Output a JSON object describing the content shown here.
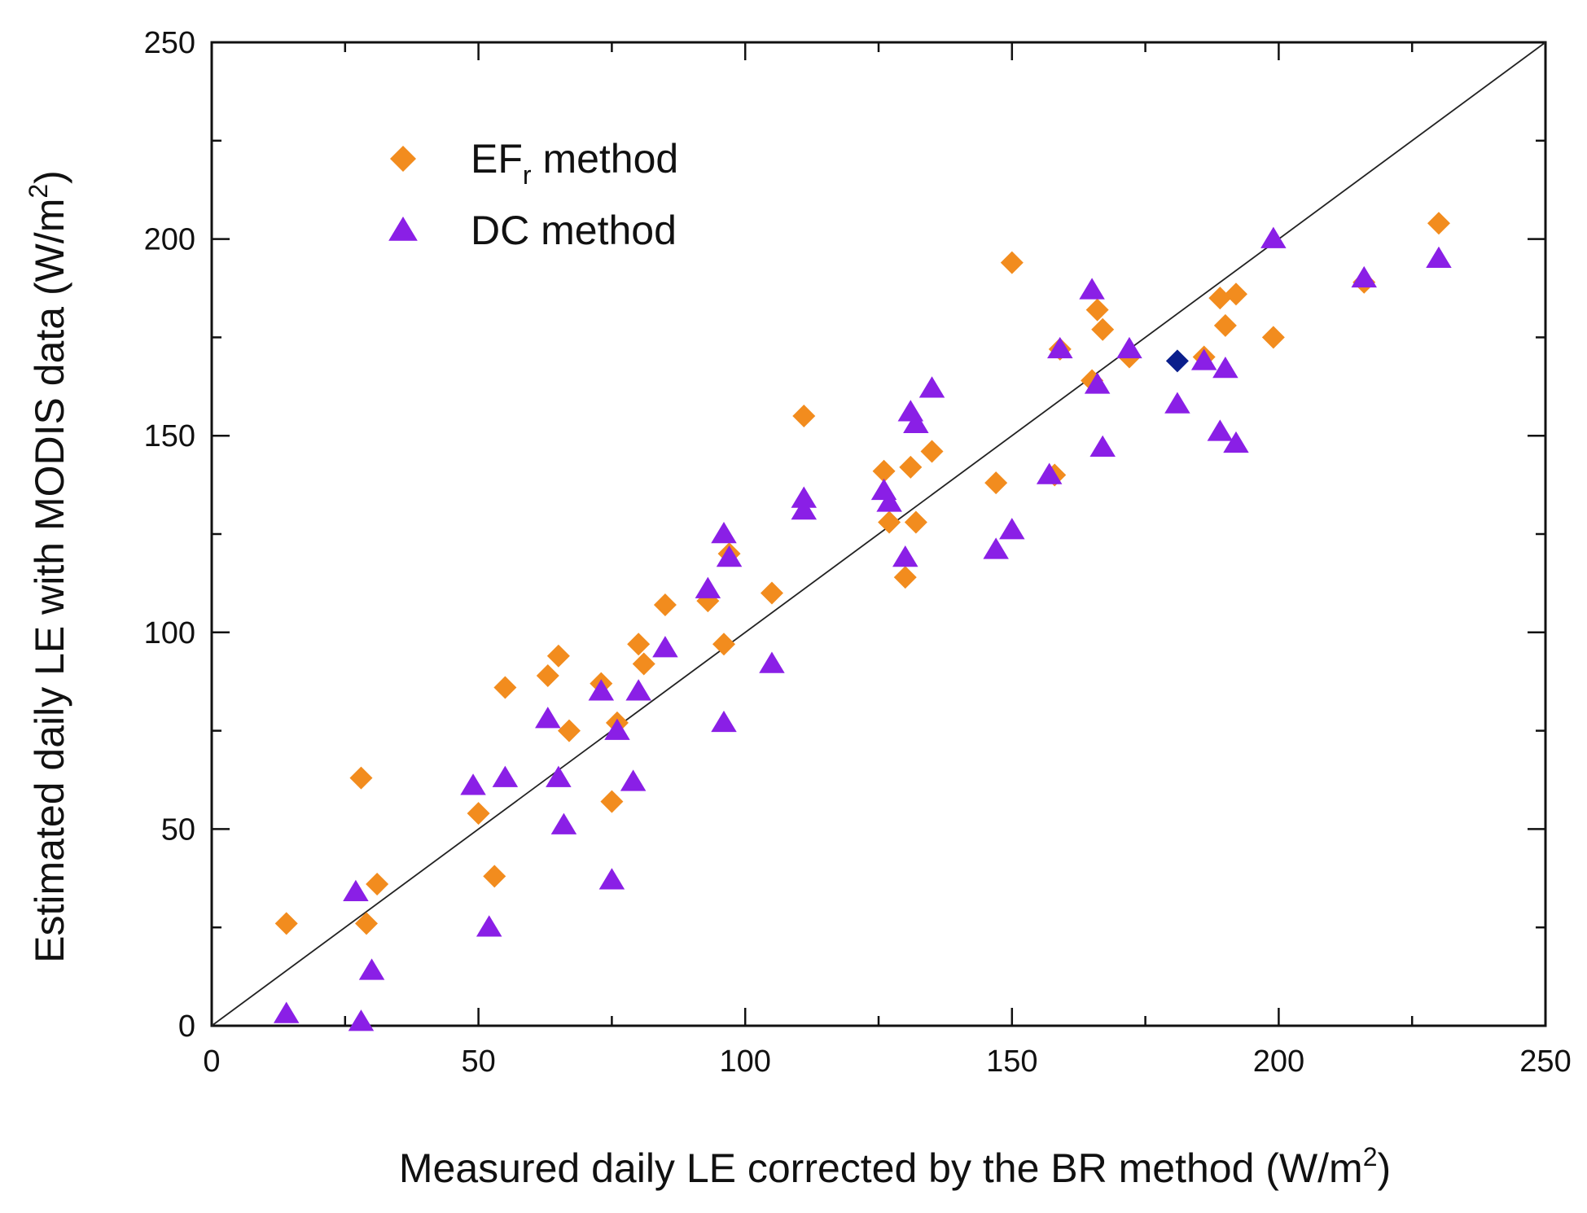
{
  "chart_data": {
    "type": "scatter",
    "xlabel": {
      "main": "Measured daily LE corrected by the BR method (W/m",
      "sup": "2",
      "tail": ")"
    },
    "ylabel": {
      "main": "Estimated daily LE with MODIS data (W/m",
      "sup": "2",
      "tail": ")"
    },
    "xlim": [
      0,
      250
    ],
    "ylim": [
      0,
      250
    ],
    "xticks": [
      "0",
      "50",
      "100",
      "150",
      "200",
      "250"
    ],
    "yticks": [
      "0",
      "50",
      "100",
      "150",
      "200",
      "250"
    ],
    "grid": false,
    "legend_position": "top-left",
    "reference_line": {
      "type": "1:1",
      "color": "#222222"
    },
    "series": [
      {
        "name": "EF",
        "name_sub": "r",
        "name_tail": " method",
        "marker": "diamond",
        "color": "#F28C1E",
        "points": [
          [
            14,
            26
          ],
          [
            28,
            63
          ],
          [
            29,
            26
          ],
          [
            31,
            36
          ],
          [
            50,
            54
          ],
          [
            53,
            38
          ],
          [
            55,
            86
          ],
          [
            63,
            89
          ],
          [
            65,
            94
          ],
          [
            67,
            75
          ],
          [
            73,
            87
          ],
          [
            75,
            57
          ],
          [
            76,
            77
          ],
          [
            80,
            97
          ],
          [
            81,
            92
          ],
          [
            85,
            107
          ],
          [
            93,
            108
          ],
          [
            96,
            97
          ],
          [
            97,
            120
          ],
          [
            105,
            110
          ],
          [
            111,
            155
          ],
          [
            126,
            141
          ],
          [
            127,
            128
          ],
          [
            130,
            114
          ],
          [
            131,
            142
          ],
          [
            132,
            128
          ],
          [
            135,
            146
          ],
          [
            147,
            138
          ],
          [
            150,
            194
          ],
          [
            158,
            140
          ],
          [
            159,
            172
          ],
          [
            165,
            164
          ],
          [
            166,
            182
          ],
          [
            167,
            177
          ],
          [
            172,
            170
          ],
          [
            186,
            170
          ],
          [
            189,
            185
          ],
          [
            190,
            178
          ],
          [
            192,
            186
          ],
          [
            199,
            175
          ],
          [
            216,
            189
          ],
          [
            230,
            204
          ]
        ]
      },
      {
        "name": "DC method",
        "marker": "triangle",
        "color": "#8A1FE6",
        "points": [
          [
            14,
            3
          ],
          [
            27,
            34
          ],
          [
            28,
            1
          ],
          [
            30,
            14
          ],
          [
            49,
            61
          ],
          [
            52,
            25
          ],
          [
            55,
            63
          ],
          [
            63,
            78
          ],
          [
            65,
            63
          ],
          [
            66,
            51
          ],
          [
            73,
            85
          ],
          [
            75,
            37
          ],
          [
            76,
            75
          ],
          [
            79,
            62
          ],
          [
            80,
            85
          ],
          [
            85,
            96
          ],
          [
            93,
            111
          ],
          [
            96,
            77
          ],
          [
            96,
            125
          ],
          [
            97,
            119
          ],
          [
            105,
            92
          ],
          [
            111,
            134
          ],
          [
            111,
            131
          ],
          [
            126,
            136
          ],
          [
            127,
            133
          ],
          [
            130,
            119
          ],
          [
            131,
            156
          ],
          [
            132,
            153
          ],
          [
            135,
            162
          ],
          [
            147,
            121
          ],
          [
            150,
            126
          ],
          [
            157,
            140
          ],
          [
            159,
            172
          ],
          [
            165,
            187
          ],
          [
            166,
            163
          ],
          [
            167,
            147
          ],
          [
            172,
            172
          ],
          [
            181,
            158
          ],
          [
            186,
            169
          ],
          [
            189,
            151
          ],
          [
            190,
            167
          ],
          [
            192,
            148
          ],
          [
            199,
            200
          ],
          [
            216,
            190
          ],
          [
            230,
            195
          ]
        ]
      },
      {
        "name": "",
        "marker": "diamond",
        "color": "#0A1E8C",
        "legend": false,
        "points": [
          [
            181,
            169
          ]
        ]
      }
    ]
  }
}
